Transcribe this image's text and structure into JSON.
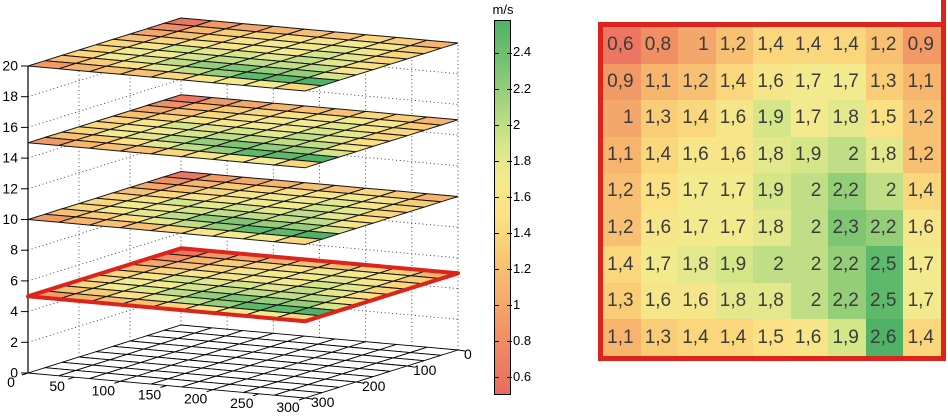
{
  "colorbar": {
    "label": "m/s",
    "ticks": [
      "0.6",
      "0.8",
      "1",
      "1.2",
      "1.4",
      "1.6",
      "1.8",
      "2",
      "2.2",
      "2.4"
    ],
    "value_range": [
      0.5,
      2.58
    ]
  },
  "colors": {
    "selection_red": "#da241c",
    "heatmap_text": "#3b3b3b",
    "mesh_stroke": "#141414",
    "grid_dotted": "#333333",
    "colormap_stops": [
      [
        0.5,
        "#e96a5f"
      ],
      [
        0.7,
        "#ee8262"
      ],
      [
        0.9,
        "#f29a66"
      ],
      [
        1.1,
        "#f6b46d"
      ],
      [
        1.3,
        "#f9cc76"
      ],
      [
        1.5,
        "#fbe184"
      ],
      [
        1.7,
        "#f3ea8e"
      ],
      [
        1.9,
        "#d5e689"
      ],
      [
        2.1,
        "#aad680"
      ],
      [
        2.3,
        "#7fc673"
      ],
      [
        2.6,
        "#4fb267"
      ]
    ]
  },
  "chart_data": [
    {
      "type": "surface-stack-3d",
      "x_ticks": [
        "0",
        "50",
        "100",
        "150",
        "200",
        "250",
        "300"
      ],
      "y_ticks": [
        "0",
        "100",
        "200",
        "300"
      ],
      "z_ticks": [
        "0",
        "2",
        "4",
        "6",
        "8",
        "10",
        "12",
        "14",
        "16",
        "18",
        "20"
      ],
      "x_range": [
        0,
        300
      ],
      "y_range": [
        0,
        300
      ],
      "z_range": [
        0,
        20
      ],
      "layer_heights": [
        5,
        10,
        15,
        20
      ],
      "highlighted_layer_z": 5,
      "floor_mesh_z": 0,
      "grid_cells": 9,
      "legend": "colored layers share the red-yellow-green m/s colormap; layer at z=5 outlined in red matches the numeric heatmap"
    },
    {
      "type": "heatmap",
      "rows": 9,
      "cols": 9,
      "decimal_separator": ",",
      "values": [
        [
          0.6,
          0.8,
          1,
          1.2,
          1.4,
          1.4,
          1.4,
          1.2,
          0.9
        ],
        [
          0.9,
          1.1,
          1.2,
          1.4,
          1.6,
          1.7,
          1.7,
          1.3,
          1.1
        ],
        [
          1,
          1.3,
          1.4,
          1.6,
          1.9,
          1.7,
          1.8,
          1.5,
          1.2
        ],
        [
          1.1,
          1.4,
          1.6,
          1.6,
          1.8,
          1.9,
          2,
          1.8,
          1.2
        ],
        [
          1.2,
          1.5,
          1.7,
          1.7,
          1.9,
          2,
          2.2,
          2,
          1.4
        ],
        [
          1.2,
          1.6,
          1.7,
          1.7,
          1.8,
          2,
          2.3,
          2.2,
          1.6
        ],
        [
          1.4,
          1.7,
          1.8,
          1.9,
          2,
          2,
          2.2,
          2.5,
          1.7
        ],
        [
          1.3,
          1.6,
          1.6,
          1.8,
          1.8,
          2,
          2.2,
          2.5,
          1.7
        ],
        [
          1.1,
          1.3,
          1.4,
          1.4,
          1.5,
          1.6,
          1.9,
          2.6,
          1.4
        ]
      ]
    }
  ]
}
